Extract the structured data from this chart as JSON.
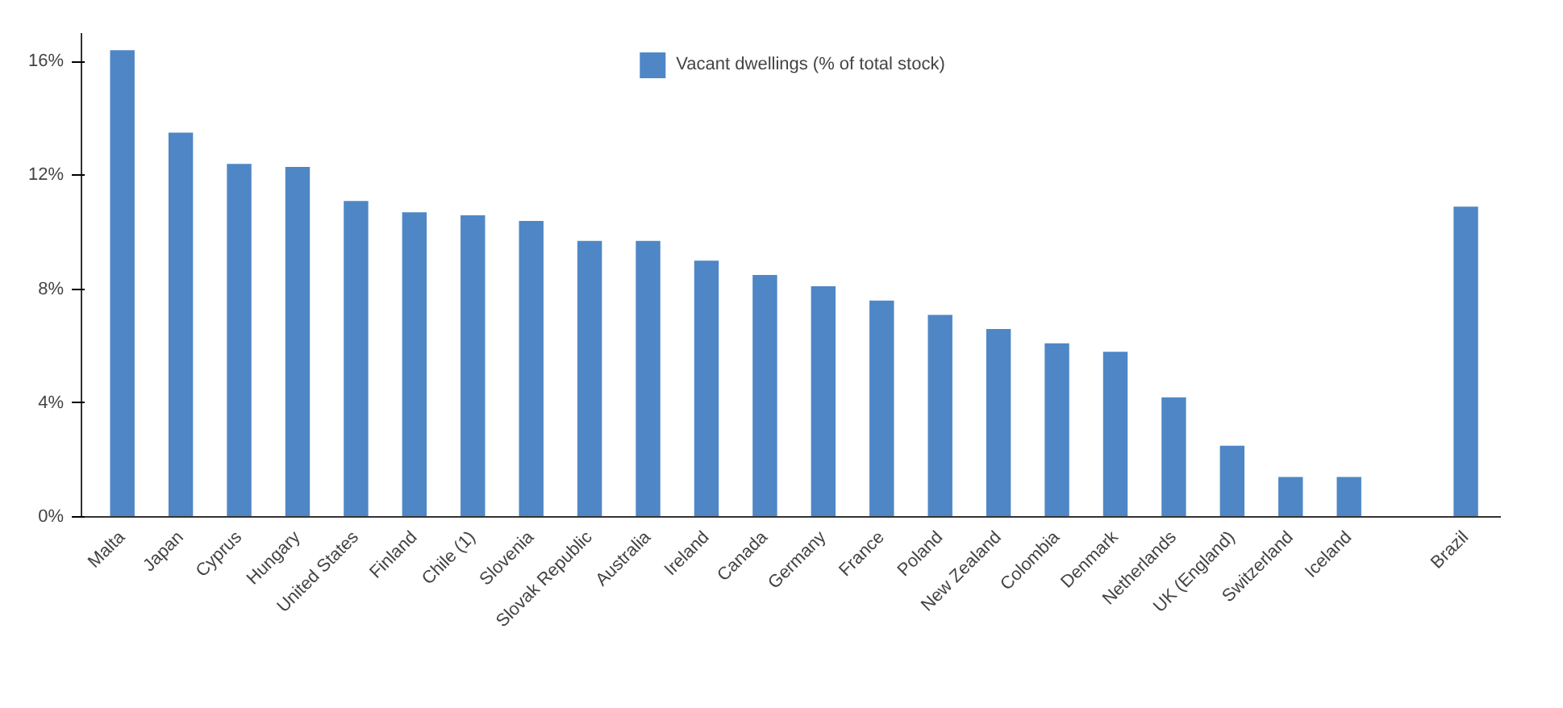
{
  "chart_data": {
    "type": "bar",
    "categories": [
      "Malta",
      "Japan",
      "Cyprus",
      "Hungary",
      "United States",
      "Finland",
      "Chile (1)",
      "Slovenia",
      "Slovak Republic",
      "Australia",
      "Ireland",
      "Canada",
      "Germany",
      "France",
      "Poland",
      "New Zealand",
      "Colombia",
      "Denmark",
      "Netherlands",
      "UK (England)",
      "Switzerland",
      "Iceland",
      null,
      "Brazil"
    ],
    "series": [
      {
        "name": "Vacant dwellings (% of total stock)",
        "color": "#4f86c6",
        "values": [
          16.4,
          13.5,
          12.4,
          12.3,
          11.1,
          10.7,
          10.6,
          10.4,
          9.7,
          9.7,
          9.0,
          8.5,
          8.1,
          7.6,
          7.1,
          6.6,
          6.1,
          5.8,
          4.2,
          2.5,
          1.4,
          1.4,
          null,
          10.9
        ]
      }
    ],
    "ylim": [
      0,
      17
    ],
    "yticks": [
      {
        "value": 0,
        "label": "0%"
      },
      {
        "value": 4,
        "label": "4%"
      },
      {
        "value": 8,
        "label": "8%"
      },
      {
        "value": 12,
        "label": "12%"
      },
      {
        "value": 16,
        "label": "16%"
      }
    ],
    "grid": false,
    "legend": "top"
  }
}
